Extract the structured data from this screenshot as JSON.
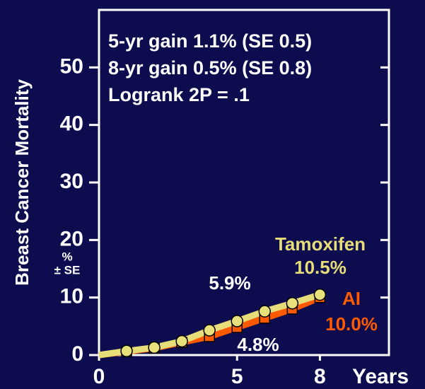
{
  "chart_data": {
    "type": "line",
    "y_label": "Breast Cancer Mortality",
    "y_unit_label": [
      "%",
      "± SE"
    ],
    "x_label": "Years",
    "annotations": [
      "5-yr gain 1.1% (SE 0.5)",
      "8-yr gain 0.5% (SE 0.8)",
      "Logrank 2P = .1"
    ],
    "x": [
      0,
      1,
      2,
      3,
      4,
      5,
      6,
      7,
      8
    ],
    "series": [
      {
        "name": "AI",
        "color": "#ff5a00",
        "values": [
          0,
          0.6,
          1.2,
          2.2,
          3.2,
          4.8,
          6.4,
          8.0,
          10.0
        ],
        "value_labels": [
          null,
          null,
          null,
          null,
          null,
          "4.8%",
          null,
          null,
          "10.0%"
        ]
      },
      {
        "name": "Tamoxifen",
        "color": "#e6dc78",
        "values": [
          0,
          0.7,
          1.3,
          2.4,
          4.3,
          5.9,
          7.6,
          9.0,
          10.5
        ],
        "value_labels": [
          null,
          null,
          null,
          null,
          null,
          "5.9%",
          null,
          null,
          "10.5%"
        ]
      }
    ],
    "xlim": [
      0,
      10.5
    ],
    "ylim": [
      0,
      60
    ],
    "xticks": [
      0,
      5,
      8
    ],
    "yticks": [
      0,
      10,
      20,
      30,
      40,
      50
    ]
  }
}
